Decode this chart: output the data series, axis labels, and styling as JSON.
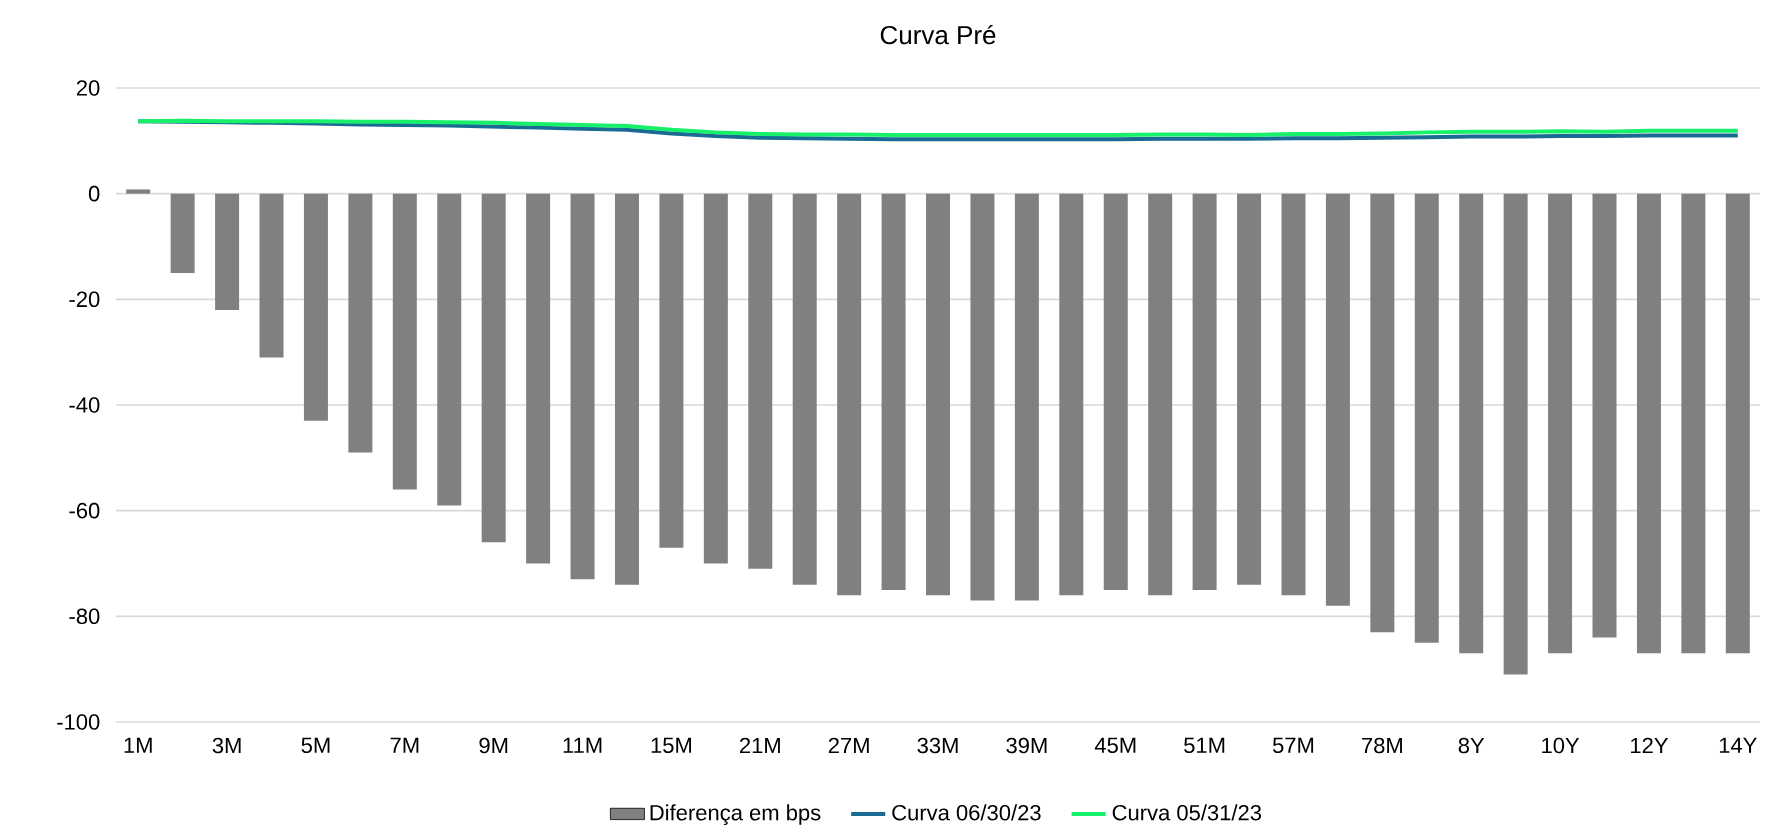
{
  "chart_data": {
    "type": "bar",
    "title": "Curva Pré",
    "categories": [
      "1M",
      null,
      "3M",
      null,
      "5M",
      null,
      "7M",
      null,
      "9M",
      null,
      "11M",
      null,
      "15M",
      null,
      "21M",
      null,
      "27M",
      null,
      "33M",
      null,
      "39M",
      null,
      "45M",
      null,
      "51M",
      null,
      "57M",
      null,
      "78M",
      null,
      "8Y",
      null,
      "10Y",
      null,
      "12Y",
      null,
      "14Y"
    ],
    "series": [
      {
        "name": "Diferença em bps",
        "color": "#808080",
        "values": [
          0.8,
          -15,
          -22,
          -31,
          -43,
          -49,
          -56,
          -59,
          -66,
          -70,
          -73,
          -74,
          -67,
          -70,
          -71,
          -74,
          -76,
          -75,
          -76,
          -77,
          -77,
          -76,
          -75,
          -76,
          -75,
          -74,
          -76,
          -78,
          -83,
          -85,
          -87,
          -91,
          -87,
          -84,
          -87,
          -87,
          -87
        ]
      },
      {
        "name": "Curva 06/30/23",
        "type": "line",
        "color": "#1a6b94",
        "values": [
          13.7,
          13.6,
          13.5,
          13.4,
          13.3,
          13.1,
          13.0,
          12.9,
          12.7,
          12.5,
          12.3,
          12.1,
          11.4,
          10.9,
          10.6,
          10.5,
          10.4,
          10.3,
          10.3,
          10.3,
          10.3,
          10.3,
          10.3,
          10.4,
          10.4,
          10.4,
          10.5,
          10.5,
          10.6,
          10.7,
          10.8,
          10.8,
          10.9,
          10.9,
          11.0,
          11.0,
          11.0
        ]
      },
      {
        "name": "Curva 05/31/23",
        "type": "line",
        "color": "#19f06a",
        "values": [
          13.7,
          13.8,
          13.7,
          13.7,
          13.7,
          13.6,
          13.6,
          13.5,
          13.4,
          13.2,
          13.0,
          12.8,
          12.1,
          11.6,
          11.3,
          11.2,
          11.2,
          11.1,
          11.1,
          11.1,
          11.1,
          11.1,
          11.1,
          11.2,
          11.2,
          11.1,
          11.3,
          11.3,
          11.4,
          11.6,
          11.7,
          11.7,
          11.8,
          11.7,
          11.9,
          11.9,
          11.9
        ]
      }
    ],
    "ylim": [
      -100,
      20
    ],
    "yticks": [
      -100,
      -80,
      -60,
      -40,
      -20,
      0,
      20
    ],
    "grid": "y",
    "legend": "bottom"
  }
}
